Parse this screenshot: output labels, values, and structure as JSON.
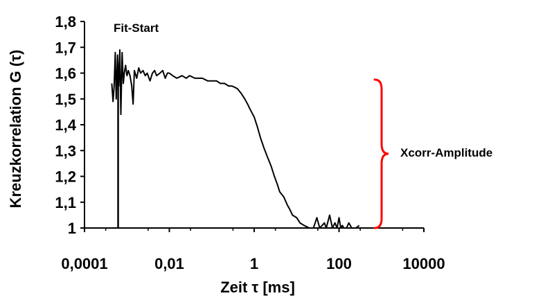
{
  "chart_data": {
    "type": "line",
    "title": "",
    "xlabel": "Zeit τ [ms]",
    "ylabel": "Kreuzkorrelation G (τ)",
    "xscale": "log",
    "xlim": [
      0.0001,
      10000
    ],
    "ylim": [
      1.0,
      1.8
    ],
    "grid": false,
    "x_ticks": [
      0.0001,
      0.01,
      1,
      100,
      10000
    ],
    "x_tick_labels": [
      "0,0001",
      "0,01",
      "1",
      "100",
      "10000"
    ],
    "y_ticks": [
      1.0,
      1.1,
      1.2,
      1.3,
      1.4,
      1.5,
      1.6,
      1.7,
      1.8
    ],
    "y_tick_labels": [
      "1",
      "1,1",
      "1,2",
      "1,3",
      "1,4",
      "1,5",
      "1,6",
      "1,7",
      "1,8"
    ],
    "line_color": "#000000",
    "series": [
      {
        "x": [
          0.00044,
          0.00047,
          0.0005,
          0.00053,
          0.00056,
          0.0006,
          0.00064,
          0.00068,
          0.00072,
          0.00077,
          0.00082,
          0.00087,
          0.00093,
          0.001,
          0.00108,
          0.00118,
          0.0013,
          0.0014,
          0.0015,
          0.0017,
          0.0019,
          0.0021,
          0.0024,
          0.0027,
          0.003,
          0.0035,
          0.004,
          0.0045,
          0.005,
          0.006,
          0.007,
          0.008,
          0.009,
          0.01,
          0.012,
          0.015,
          0.02,
          0.025,
          0.03,
          0.04,
          0.05,
          0.06,
          0.08,
          0.1,
          0.13,
          0.16,
          0.2,
          0.25,
          0.3,
          0.4,
          0.5,
          0.6,
          0.7,
          0.8,
          1.0,
          1.2,
          1.4,
          1.7,
          2.0,
          2.5,
          3.0,
          3.5,
          4.0,
          5.0,
          6.0,
          7.0,
          8.0,
          10,
          12,
          15,
          20,
          25,
          30,
          35,
          40,
          45,
          50,
          60,
          70,
          80,
          90,
          100,
          110,
          120,
          130,
          150,
          170,
          200,
          250,
          300
        ],
        "y": [
          1.56,
          1.49,
          1.55,
          1.68,
          1.5,
          1.67,
          1.55,
          1.69,
          1.44,
          1.68,
          1.56,
          1.6,
          1.63,
          1.59,
          1.61,
          1.59,
          1.55,
          1.48,
          1.61,
          1.58,
          1.62,
          1.6,
          1.61,
          1.59,
          1.6,
          1.57,
          1.6,
          1.61,
          1.59,
          1.6,
          1.61,
          1.58,
          1.6,
          1.6,
          1.59,
          1.58,
          1.59,
          1.58,
          1.59,
          1.58,
          1.58,
          1.58,
          1.57,
          1.57,
          1.57,
          1.56,
          1.56,
          1.55,
          1.55,
          1.54,
          1.52,
          1.5,
          1.48,
          1.46,
          1.43,
          1.39,
          1.35,
          1.31,
          1.28,
          1.24,
          1.2,
          1.17,
          1.14,
          1.12,
          1.09,
          1.07,
          1.05,
          1.04,
          1.02,
          1.01,
          1.0,
          1.0,
          1.04,
          1.0,
          1.01,
          1.02,
          1.0,
          1.05,
          1.0,
          1.02,
          1.0,
          1.04,
          1.0,
          1.01,
          1.0,
          1.0,
          1.02,
          1.0,
          1.0,
          1.01
        ]
      }
    ],
    "annotations": {
      "fit_start_label": "Fit-Start",
      "fit_start_x": 0.00062,
      "amplitude_label": "Xcorr-Amplitude",
      "brace_range": [
        1.0,
        1.575
      ],
      "brace_color": "#ff0000"
    }
  }
}
